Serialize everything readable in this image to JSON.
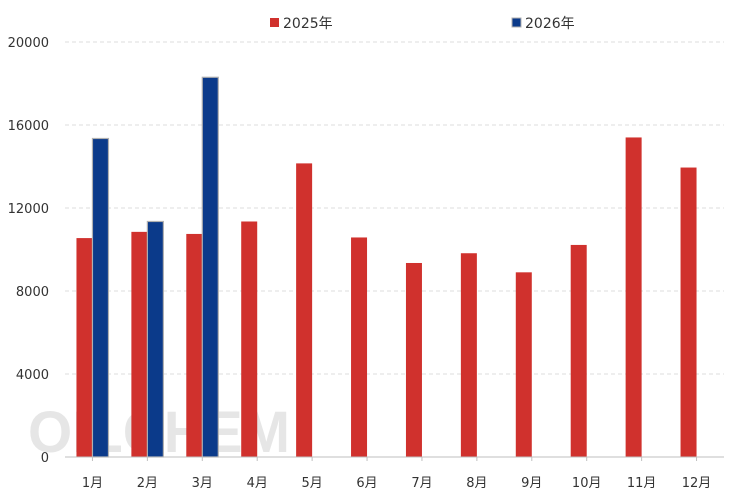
{
  "chart_data": {
    "type": "bar",
    "categories": [
      "1月",
      "2月",
      "3月",
      "4月",
      "5月",
      "6月",
      "7月",
      "8月",
      "9月",
      "10月",
      "11月",
      "12月"
    ],
    "series": [
      {
        "name": "2025年",
        "color": "#d0312d",
        "values": [
          10550,
          10850,
          10750,
          11350,
          14150,
          10580,
          9350,
          9820,
          8900,
          10220,
          15400,
          13950
        ]
      },
      {
        "name": "2026年",
        "color": "#0b3a8a",
        "values": [
          15350,
          11350,
          18300,
          null,
          null,
          null,
          null,
          null,
          null,
          null,
          null,
          null
        ]
      }
    ],
    "yticks": [
      0,
      4000,
      8000,
      12000,
      16000,
      20000
    ],
    "ylim": [
      0,
      20000
    ],
    "legend_position": "top",
    "title": "",
    "xlabel": "",
    "ylabel": "",
    "watermark": "OILCHEM"
  }
}
